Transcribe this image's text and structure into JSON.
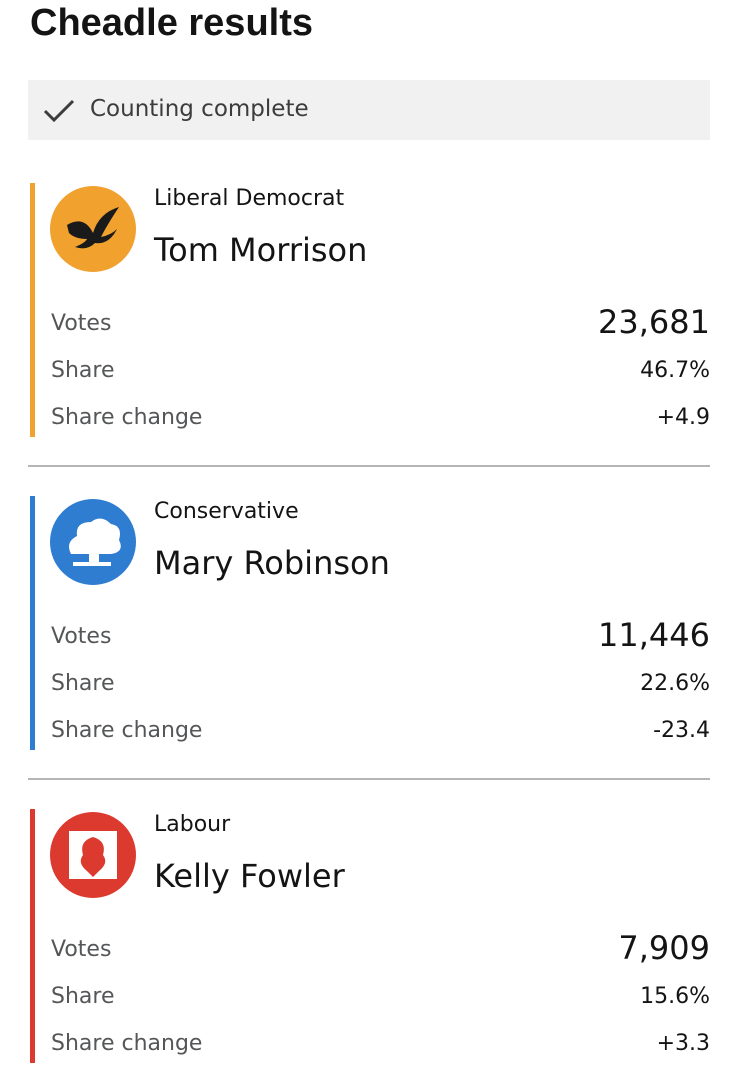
{
  "header": {
    "title": "Cheadle results",
    "status": "Counting complete"
  },
  "candidates": [
    {
      "party": "Liberal Democrat",
      "name": "Tom Morrison",
      "color": "#f0a12e",
      "rows": [
        {
          "label": "Votes",
          "value": "23,681"
        },
        {
          "label": "Share",
          "value": "46.7%"
        },
        {
          "label": "Share change",
          "value": "+4.9"
        }
      ]
    },
    {
      "party": "Conservative",
      "name": "Mary Robinson",
      "color": "#2f7dd1",
      "rows": [
        {
          "label": "Votes",
          "value": "11,446"
        },
        {
          "label": "Share",
          "value": "22.6%"
        },
        {
          "label": "Share change",
          "value": "-23.4"
        }
      ]
    },
    {
      "party": "Labour",
      "name": "Kelly Fowler",
      "color": "#dc3a2f",
      "rows": [
        {
          "label": "Votes",
          "value": "7,909"
        },
        {
          "label": "Share",
          "value": "15.6%"
        },
        {
          "label": "Share change",
          "value": "+3.3"
        }
      ]
    }
  ]
}
